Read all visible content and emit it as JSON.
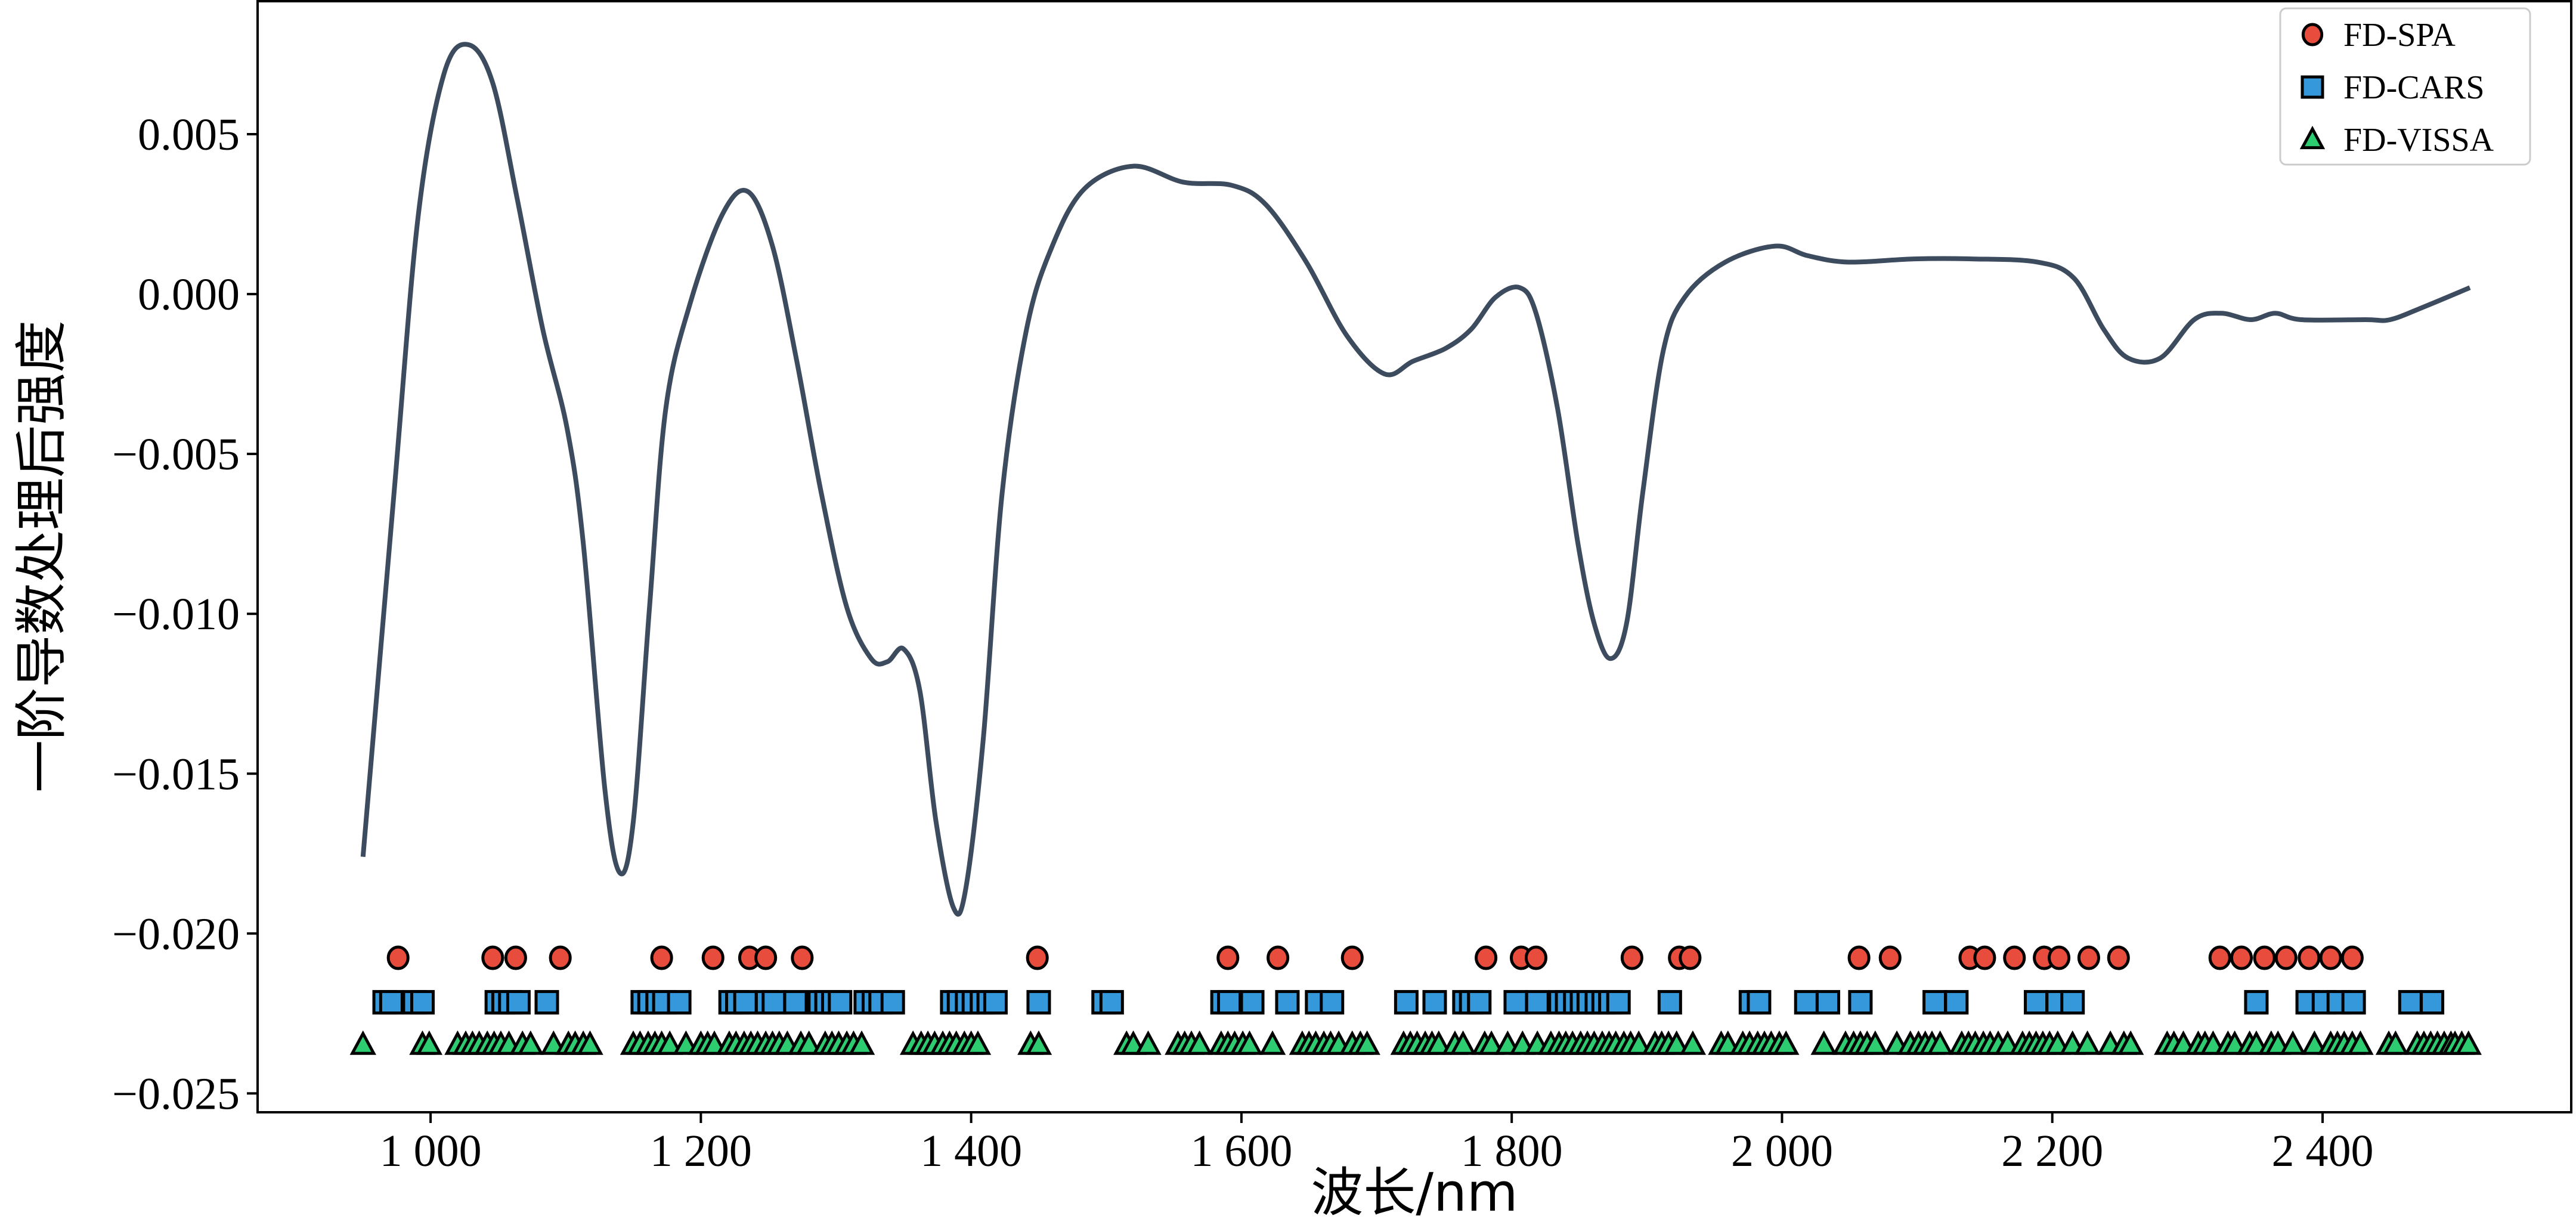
{
  "chart_data": {
    "type": "line",
    "title": "",
    "xlabel": "波长/nm",
    "ylabel": "一阶导数处理后强度",
    "xlim": [
      872,
      2584
    ],
    "ylim": [
      -0.02559,
      0.00916
    ],
    "xticks": [
      1000,
      1200,
      1400,
      1600,
      1800,
      2000,
      2200,
      2400
    ],
    "xtick_labels": [
      "1 000",
      "1 200",
      "1 400",
      "1 600",
      "1 800",
      "2 000",
      "2 200",
      "2 400"
    ],
    "yticks": [
      0.005,
      0.0,
      -0.005,
      -0.01,
      -0.015,
      -0.02,
      -0.025
    ],
    "ytick_labels": [
      "0.005",
      "0.000",
      "−0.005",
      "−0.010",
      "−0.015",
      "−0.020",
      "−0.025"
    ],
    "grid": false,
    "legend_position": "top-right",
    "spectrum": {
      "color": "#3d4b5f",
      "x": [
        950,
        973,
        991,
        1010,
        1028,
        1046,
        1064,
        1083,
        1101,
        1113,
        1129,
        1140,
        1150,
        1162,
        1174,
        1192,
        1216,
        1235,
        1253,
        1271,
        1289,
        1308,
        1326,
        1338,
        1350,
        1362,
        1374,
        1387,
        1396,
        1409,
        1423,
        1441,
        1460,
        1484,
        1520,
        1557,
        1593,
        1618,
        1648,
        1678,
        1706,
        1727,
        1751,
        1770,
        1788,
        1806,
        1818,
        1834,
        1849,
        1861,
        1873,
        1885,
        1897,
        1912,
        1928,
        1958,
        1995,
        2019,
        2049,
        2098,
        2140,
        2189,
        2216,
        2238,
        2256,
        2280,
        2305,
        2325,
        2347,
        2365,
        2384,
        2432,
        2450,
        2475,
        2509
      ],
      "y": [
        -0.0176,
        -0.0062,
        0.0025,
        0.0069,
        0.0078,
        0.0066,
        0.003,
        -0.0011,
        -0.0042,
        -0.0078,
        -0.0155,
        -0.0181,
        -0.0165,
        -0.0098,
        -0.0036,
        -0.0003,
        0.0025,
        0.0032,
        0.0015,
        -0.0021,
        -0.0062,
        -0.0098,
        -0.0114,
        -0.0115,
        -0.0111,
        -0.0124,
        -0.0165,
        -0.0192,
        -0.0186,
        -0.0139,
        -0.0062,
        -0.0011,
        0.0015,
        0.0033,
        0.004,
        0.0035,
        0.0034,
        0.0028,
        0.001,
        -0.0013,
        -0.0025,
        -0.0021,
        -0.0017,
        -0.0011,
        -0.0001,
        0.0002,
        -0.0006,
        -0.0036,
        -0.0078,
        -0.0103,
        -0.0114,
        -0.0103,
        -0.0062,
        -0.0018,
        -0.0001,
        0.001,
        0.0015,
        0.0012,
        0.001,
        0.0011,
        0.0011,
        0.001,
        0.0005,
        -0.0011,
        -0.002,
        -0.002,
        -0.0008,
        -0.0006,
        -0.0008,
        -0.0006,
        -0.0008,
        -0.0008,
        -0.0008,
        -0.0004,
        0.0002
      ]
    },
    "series": [
      {
        "name": "FD-SPA",
        "marker": "circle",
        "color": "#e74c3c",
        "level": -0.02076,
        "x": [
          976,
          1046,
          1063,
          1096,
          1171,
          1209,
          1236,
          1248,
          1275,
          1449,
          1590,
          1627,
          1682,
          1781,
          1807,
          1818,
          1889,
          1924,
          1932,
          2057,
          2080,
          2139,
          2150,
          2172,
          2194,
          2205,
          2227,
          2249,
          2324,
          2340,
          2357,
          2373,
          2390,
          2406,
          2422
        ]
      },
      {
        "name": "FD-CARS",
        "marker": "square",
        "color": "#3498db",
        "level": -0.02215,
        "x": [
          966,
          971,
          988,
          994,
          1049,
          1054,
          1059,
          1065,
          1086,
          1157,
          1162,
          1168,
          1173,
          1184,
          1222,
          1227,
          1233,
          1249,
          1254,
          1270,
          1288,
          1293,
          1298,
          1303,
          1322,
          1328,
          1333,
          1342,
          1386,
          1391,
          1397,
          1402,
          1408,
          1413,
          1418,
          1450,
          1498,
          1504,
          1586,
          1591,
          1608,
          1634,
          1656,
          1667,
          1722,
          1743,
          1765,
          1770,
          1776,
          1803,
          1819,
          1836,
          1841,
          1847,
          1852,
          1857,
          1863,
          1868,
          1873,
          1879,
          1917,
          1977,
          1983,
          2018,
          2034,
          2058,
          2113,
          2129,
          2188,
          2204,
          2215,
          2351,
          2389,
          2401,
          2412,
          2423,
          2465,
          2481
        ]
      },
      {
        "name": "FD-VISSA",
        "marker": "triangle",
        "color": "#2ecc71",
        "level": -0.02348,
        "x": [
          950,
          994,
          999,
          1020,
          1026,
          1031,
          1036,
          1042,
          1047,
          1052,
          1058,
          1068,
          1074,
          1091,
          1102,
          1107,
          1113,
          1118,
          1150,
          1155,
          1161,
          1166,
          1171,
          1177,
          1189,
          1200,
          1205,
          1210,
          1221,
          1226,
          1232,
          1237,
          1242,
          1248,
          1253,
          1258,
          1264,
          1274,
          1280,
          1292,
          1297,
          1302,
          1308,
          1313,
          1319,
          1357,
          1363,
          1368,
          1373,
          1379,
          1384,
          1389,
          1395,
          1400,
          1405,
          1444,
          1450,
          1515,
          1520,
          1531,
          1553,
          1558,
          1563,
          1569,
          1585,
          1590,
          1595,
          1601,
          1606,
          1623,
          1645,
          1650,
          1655,
          1661,
          1666,
          1672,
          1682,
          1688,
          1693,
          1720,
          1725,
          1730,
          1736,
          1741,
          1746,
          1758,
          1764,
          1780,
          1785,
          1797,
          1808,
          1819,
          1829,
          1835,
          1840,
          1845,
          1851,
          1856,
          1861,
          1867,
          1872,
          1877,
          1883,
          1888,
          1894,
          1906,
          1911,
          1916,
          1922,
          1934,
          1955,
          1960,
          1971,
          1976,
          1982,
          1987,
          1992,
          1998,
          2003,
          2031,
          2047,
          2053,
          2058,
          2063,
          2069,
          2085,
          2095,
          2101,
          2106,
          2111,
          2117,
          2133,
          2138,
          2143,
          2149,
          2154,
          2160,
          2167,
          2178,
          2183,
          2188,
          2193,
          2198,
          2204,
          2215,
          2226,
          2243,
          2253,
          2258,
          2285,
          2290,
          2297,
          2308,
          2313,
          2319,
          2330,
          2335,
          2346,
          2351,
          2362,
          2367,
          2378,
          2394,
          2406,
          2411,
          2416,
          2422,
          2428,
          2449,
          2454,
          2470,
          2475,
          2480,
          2485,
          2490,
          2495,
          2498,
          2503,
          2508
        ]
      }
    ]
  }
}
